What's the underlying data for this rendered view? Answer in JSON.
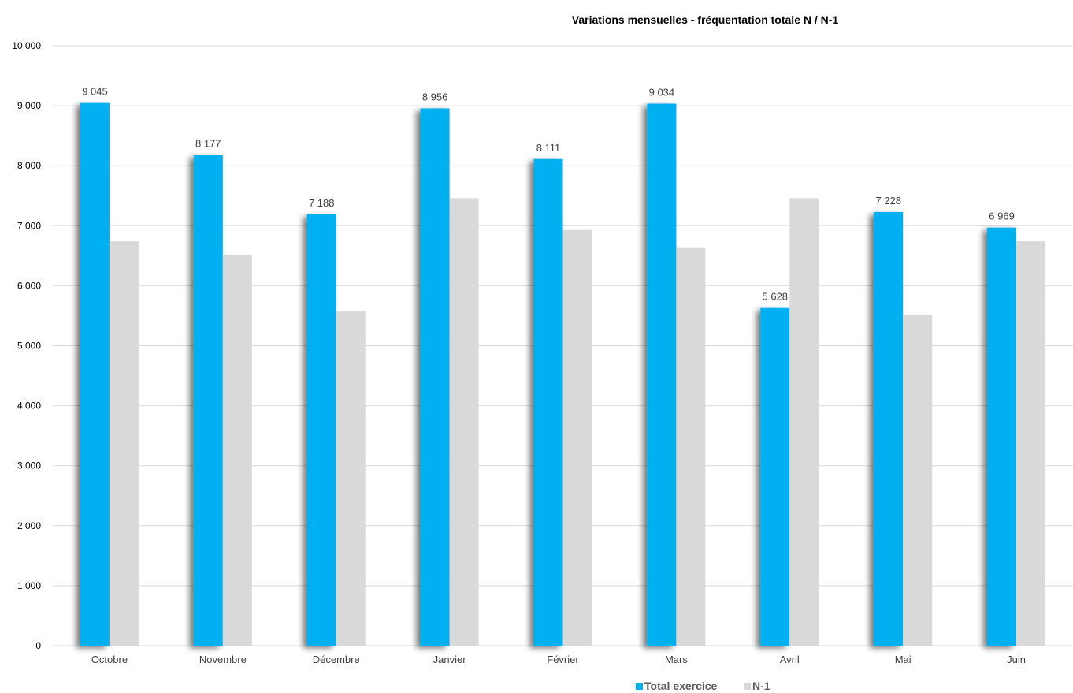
{
  "chart_data": {
    "type": "bar",
    "title": "Variations mensuelles - fréquentation totale N / N-1",
    "xlabel": "",
    "ylabel": "",
    "ylim": [
      0,
      10000
    ],
    "y_ticks": [
      0,
      1000,
      2000,
      3000,
      4000,
      5000,
      6000,
      7000,
      8000,
      9000,
      10000
    ],
    "y_tick_labels": [
      "0",
      "1 000",
      "2 000",
      "3 000",
      "4 000",
      "5 000",
      "6 000",
      "7 000",
      "8 000",
      "9 000",
      "10 000"
    ],
    "categories": [
      "Octobre",
      "Novembre",
      "Décembre",
      "Janvier",
      "Février",
      "Mars",
      "Avril",
      "Mai",
      "Juin"
    ],
    "series": [
      {
        "name": "Total exercice",
        "color": "#00b0f0",
        "values": [
          9045,
          8177,
          7188,
          8956,
          8111,
          9034,
          5628,
          7228,
          6969
        ],
        "data_labels": [
          "9 045",
          "8 177",
          "7 188",
          "8 956",
          "8 111",
          "9 034",
          "5 628",
          "7 228",
          "6 969"
        ]
      },
      {
        "name": "N-1",
        "color": "#d9d9d9",
        "values": [
          6740,
          6520,
          5570,
          7460,
          6930,
          6640,
          7460,
          5520,
          6740
        ]
      }
    ],
    "grid": true,
    "legend_position": "bottom"
  }
}
